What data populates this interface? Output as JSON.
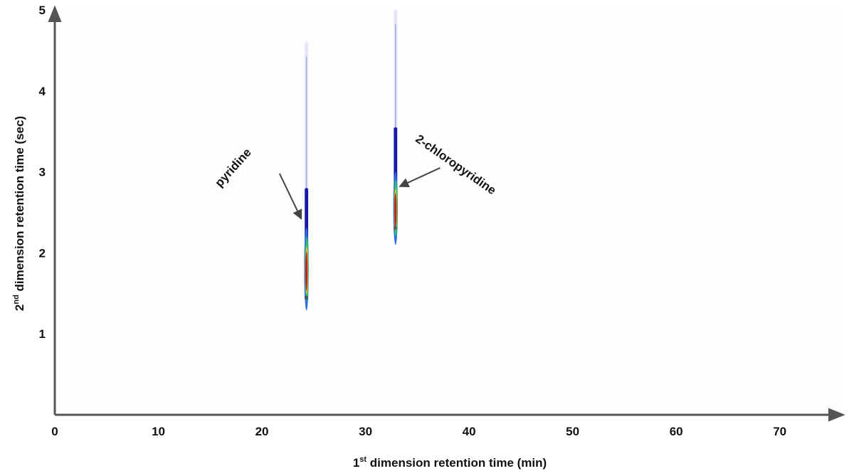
{
  "chart_data": {
    "type": "heatmap",
    "title": "",
    "xlabel": {
      "pre": "1",
      "sup": "st",
      "post": " dimension retention time (min)"
    },
    "ylabel": {
      "pre": "2",
      "sup": "nd",
      "post": " dimension retention time (sec)"
    },
    "xlim": [
      0,
      76
    ],
    "ylim": [
      0,
      5
    ],
    "xticks": [
      0,
      10,
      20,
      30,
      40,
      50,
      60,
      70
    ],
    "yticks": [
      1,
      2,
      3,
      4,
      5
    ],
    "grid": false,
    "peaks": [
      {
        "name": "pyridine",
        "x": 24.3,
        "y_apex": 1.8,
        "y_start": 1.42,
        "y_tail_end": 4.6
      },
      {
        "name": "2-chloropyridine",
        "x": 32.9,
        "y_apex": 2.55,
        "y_start": 2.28,
        "y_tail_end": 5.0
      }
    ],
    "annotations": [
      {
        "text": "pyridine",
        "label_x": 17.5,
        "label_y": 3.02,
        "arrow_from": [
          21.7,
          2.98
        ],
        "arrow_to": [
          23.8,
          2.42
        ]
      },
      {
        "text": "2-chloropyridine",
        "label_x": 38.5,
        "label_y": 3.05,
        "arrow_from": [
          37.2,
          3.05
        ],
        "arrow_to": [
          33.3,
          2.82
        ]
      }
    ],
    "colormap": [
      "#1a1aa8",
      "#2b6fd6",
      "#2fc46a",
      "#f2c21a",
      "#c81e1e"
    ]
  }
}
